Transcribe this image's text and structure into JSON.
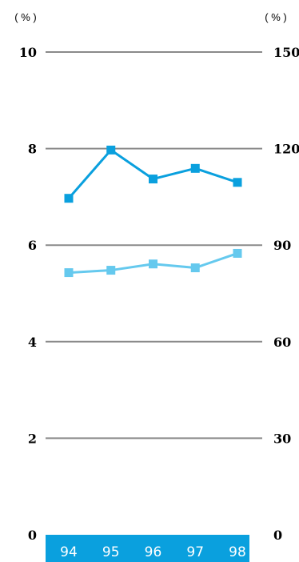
{
  "chart_data": {
    "type": "line",
    "categories": [
      "94",
      "95",
      "96",
      "97",
      "98"
    ],
    "y_left": {
      "unit": "( % )",
      "ticks": [
        "0",
        "2",
        "4",
        "6",
        "8",
        "10"
      ],
      "ylim": [
        0,
        10
      ]
    },
    "y_right": {
      "unit": "( % )",
      "ticks": [
        "0",
        "30",
        "60",
        "90",
        "120",
        "150"
      ],
      "ylim": [
        0,
        150
      ]
    },
    "grid": true,
    "series": [
      {
        "values": [
          6.97,
          7.97,
          7.37,
          7.59,
          7.3
        ],
        "color": "#0aa0de",
        "marker": "square"
      },
      {
        "values": [
          5.43,
          5.48,
          5.61,
          5.53,
          5.83
        ],
        "color": "#65c9ee",
        "marker": "square"
      }
    ],
    "x_band_color": "#0aa0de"
  }
}
